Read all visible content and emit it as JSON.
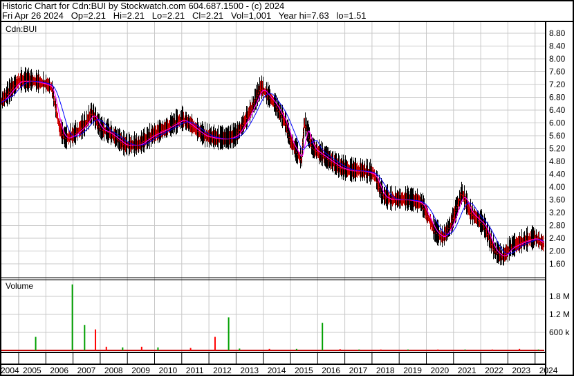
{
  "header": {
    "title": "Historic Chart for Cdn:BUI by Stockwatch.com 604.687.1500 - (c) 2024",
    "quote": "Fri Apr 26 2024   Op=2.21   Hi=2.21   Lo=2.21   Cl=2.21   Vol=1,001   Year hi=7.63   lo=1.51"
  },
  "chart_data": [
    {
      "type": "line",
      "title": "Cdn:BUI",
      "ylim": [
        1.2,
        9.0
      ],
      "yticks": [
        "8.80",
        "8.40",
        "8.00",
        "7.60",
        "7.20",
        "6.80",
        "6.40",
        "6.00",
        "5.60",
        "5.20",
        "4.80",
        "4.40",
        "4.00",
        "3.60",
        "3.20",
        "2.80",
        "2.40",
        "2.00",
        "1.60"
      ],
      "colors": {
        "price": "#000000",
        "ma_short": "#ff00ff",
        "ma_long": "#0000ff",
        "down": "#ff0000"
      },
      "x": [
        2004.3,
        2004.6,
        2005.0,
        2005.5,
        2006.0,
        2006.2,
        2006.5,
        2006.7,
        2007.0,
        2007.4,
        2007.7,
        2008.0,
        2008.3,
        2008.9,
        2009.4,
        2009.9,
        2010.4,
        2011.0,
        2011.2,
        2011.8,
        2012.3,
        2012.7,
        2013.0,
        2013.3,
        2013.6,
        2013.9,
        2014.4,
        2014.8,
        2015.0,
        2015.4,
        2015.5,
        2015.8,
        2016.3,
        2016.8,
        2017.2,
        2017.6,
        2018.05,
        2018.4,
        2018.7,
        2019.3,
        2019.8,
        2020.3,
        2020.6,
        2020.9,
        2021.1,
        2021.3,
        2021.6,
        2022.1,
        2022.5,
        2022.8,
        2023.1,
        2023.6,
        2024.0,
        2024.3
      ],
      "values": [
        6.6,
        6.9,
        7.3,
        7.3,
        7.2,
        7.1,
        5.8,
        5.5,
        5.6,
        5.9,
        6.3,
        5.8,
        5.7,
        5.3,
        5.3,
        5.6,
        5.8,
        6.1,
        6.0,
        5.6,
        5.5,
        5.5,
        5.6,
        6.0,
        6.5,
        7.1,
        6.6,
        6.0,
        5.4,
        4.8,
        6.0,
        5.2,
        4.9,
        4.6,
        4.5,
        4.5,
        4.4,
        3.7,
        3.6,
        3.6,
        3.5,
        2.6,
        2.4,
        2.8,
        3.3,
        3.8,
        3.2,
        2.8,
        2.0,
        1.8,
        2.1,
        2.3,
        2.4,
        2.2
      ]
    },
    {
      "type": "bar",
      "title": "Volume",
      "yticks": [
        "1.8 M",
        "1.2 M",
        "600 k"
      ],
      "x": [
        2005.6,
        2006.95,
        2007.4,
        2007.8,
        2008.2,
        2008.8,
        2009.5,
        2010.1,
        2011.3,
        2012.2,
        2012.7,
        2013.1,
        2014.2,
        2015.2,
        2016.15,
        2016.8,
        2017.5,
        2018.3,
        2019.3,
        2020.4,
        2021.4,
        2022.4,
        2023.4,
        2024.1
      ],
      "values": [
        0.45,
        2.2,
        0.85,
        0.7,
        0.12,
        0.1,
        0.12,
        0.1,
        0.08,
        0.45,
        1.1,
        0.06,
        0.05,
        0.05,
        0.92,
        0.04,
        0.03,
        0.03,
        0.03,
        0.03,
        0.03,
        0.03,
        0.05,
        0.03
      ],
      "colors": [
        "#00a000",
        "#00a000",
        "#00a000",
        "#ff0000",
        "#ff0000",
        "#00a000",
        "#ff0000",
        "#00a000",
        "#ff0000",
        "#ff0000",
        "#00a000",
        "#00a000",
        "#ff0000",
        "#00a000",
        "#00a000",
        "#ff0000",
        "#00a000",
        "#ff0000",
        "#00a000",
        "#ff0000",
        "#00a000",
        "#ff0000",
        "#ff0000",
        "#00a000"
      ]
    }
  ],
  "xaxis": {
    "years": [
      "2004",
      "2005",
      "2006",
      "2007",
      "2008",
      "2009",
      "2010",
      "2011",
      "2012",
      "2013",
      "2014",
      "2015",
      "2016",
      "2017",
      "2018",
      "2019",
      "2020",
      "2021",
      "2022",
      "2023",
      "2024"
    ]
  }
}
